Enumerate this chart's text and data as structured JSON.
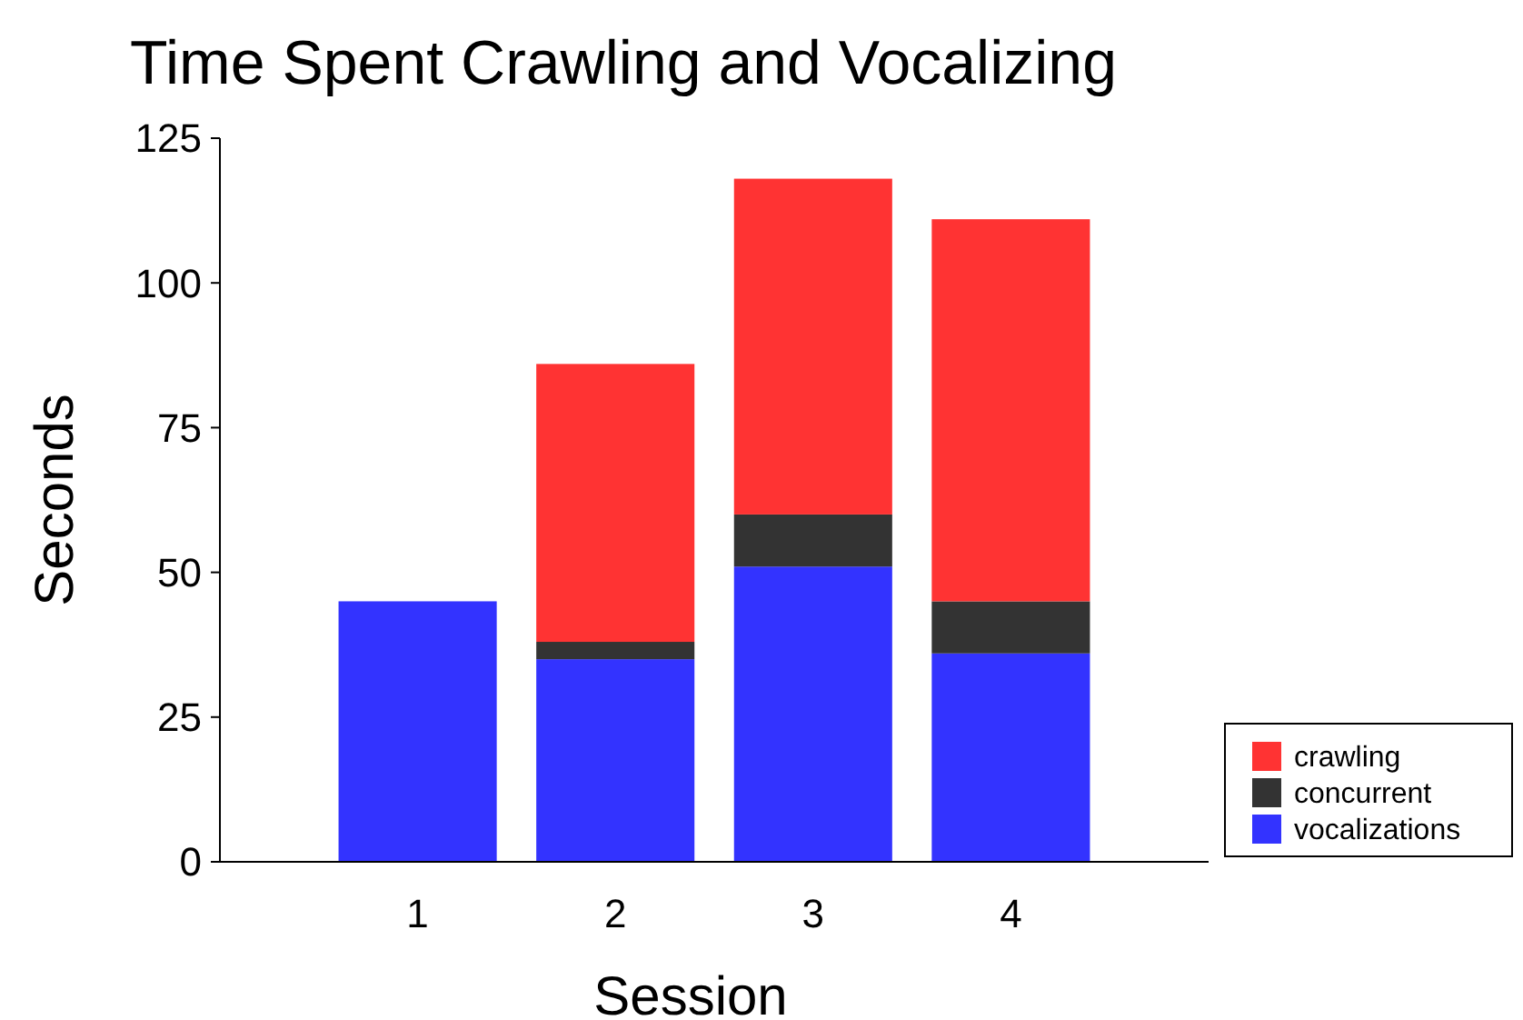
{
  "chart_data": {
    "type": "bar",
    "title": "Time Spent Crawling and Vocalizing",
    "xlabel": "Session",
    "ylabel": "Seconds",
    "categories": [
      "1",
      "2",
      "3",
      "4"
    ],
    "stacked": true,
    "legend": "bottom right",
    "ylim": [
      0,
      125
    ],
    "yticks": [
      0,
      25,
      50,
      75,
      100,
      125
    ],
    "series": [
      {
        "name": "vocalizations",
        "color": "#3333ff",
        "values": [
          45,
          35,
          51,
          36
        ]
      },
      {
        "name": "concurrent",
        "color": "#333333",
        "values": [
          0,
          3,
          9,
          9
        ]
      },
      {
        "name": "crawling",
        "color": "#ff3333",
        "values": [
          0,
          48,
          58,
          66
        ]
      }
    ]
  }
}
